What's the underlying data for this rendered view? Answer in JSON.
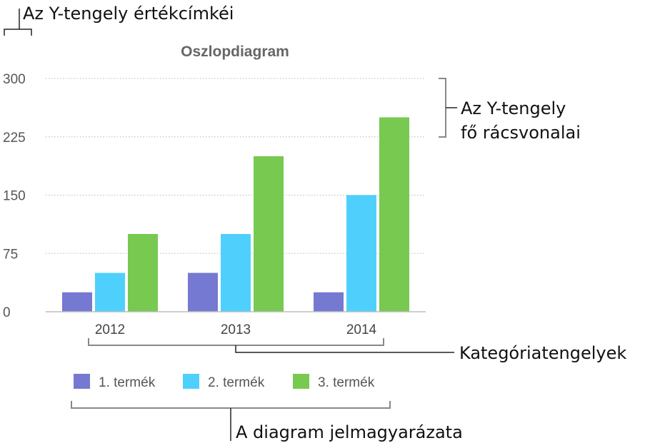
{
  "chart_data": {
    "type": "bar",
    "title": "Oszlopdiagram",
    "categories": [
      "2012",
      "2013",
      "2014"
    ],
    "series": [
      {
        "name": "1. termék",
        "values": [
          25,
          50,
          25
        ],
        "color": "#7679d1"
      },
      {
        "name": "2. termék",
        "values": [
          50,
          100,
          150
        ],
        "color": "#4fd0fc"
      },
      {
        "name": "3. termék",
        "values": [
          100,
          200,
          250
        ],
        "color": "#77c94f"
      }
    ],
    "yticks": [
      "0",
      "75",
      "150",
      "225",
      "300"
    ],
    "ylim": [
      0,
      300
    ],
    "grid": true,
    "legend_position": "bottom"
  },
  "annotations": {
    "y_value_labels": "Az Y-tengely értékcímkéi",
    "gridlines_line1": "Az Y-tengely",
    "gridlines_line2": "fő rácsvonalai",
    "category_axis": "Kategóriatengelyek",
    "legend": "A diagram jelmagyarázata"
  }
}
